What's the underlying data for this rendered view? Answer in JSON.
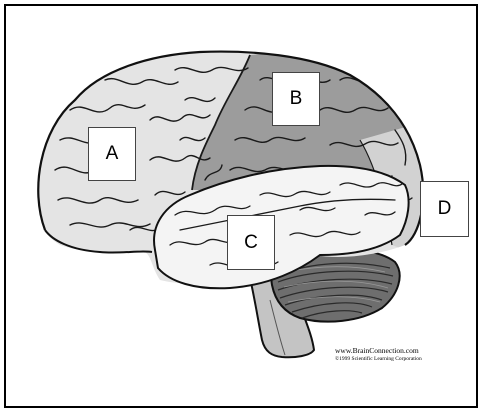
{
  "labels": {
    "a": "A",
    "b": "B",
    "c": "C",
    "d": "D"
  },
  "credit": {
    "site": "www.BrainConnection.com",
    "copyright": "©1999 Scientific Learning Corporation"
  },
  "colors": {
    "frontal_lobe": "#e4e4e4",
    "parietal_lobe": "#9c9c9c",
    "temporal_lobe": "#f4f4f4",
    "occipital_lobe": "#d2d2d2",
    "cerebellum": "#6e6e6e",
    "brainstem": "#c4c4c4",
    "outline": "#111111"
  }
}
